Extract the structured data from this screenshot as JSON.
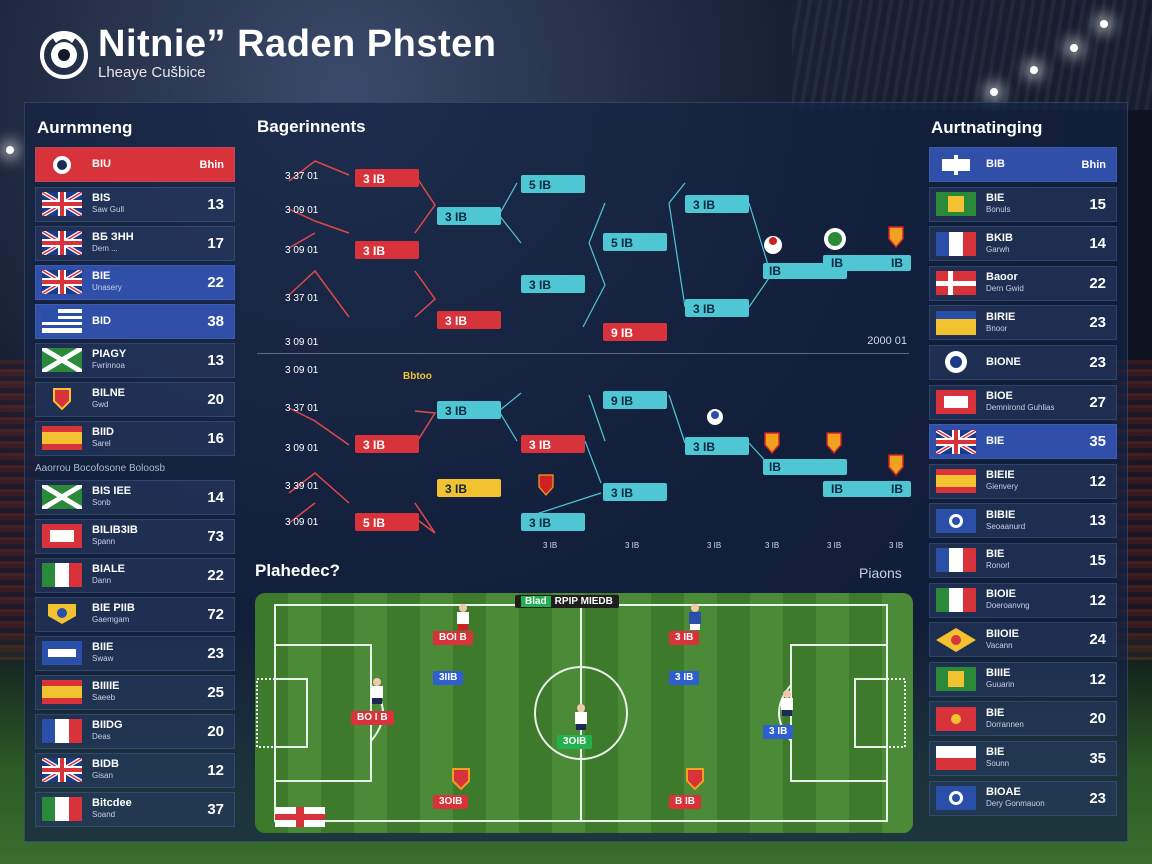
{
  "header": {
    "title": "Nitnie” Raden Phsten",
    "subtitle": "Lheaye Cušbice"
  },
  "left_panel": {
    "heading": "Aurnmneng",
    "header_row": {
      "name": "BIU",
      "score": "Bhin"
    },
    "rows": [
      {
        "name": "BIS",
        "sub": "Saw Gull",
        "score": "13"
      },
      {
        "name": "BБ ЗНН",
        "sub": "Dem ...",
        "score": "17"
      },
      {
        "name": "BIE",
        "sub": "Unasery",
        "score": "22"
      },
      {
        "name": "BID",
        "sub": "",
        "score": "38"
      },
      {
        "name": "PIAGY",
        "sub": "Fwrinnoa",
        "score": "13"
      },
      {
        "name": "BILNE",
        "sub": "Gwd",
        "score": "20"
      },
      {
        "name": "BIID",
        "sub": "Sarel",
        "score": "16"
      }
    ],
    "divider": "Aaorrou Bocofosone Boloosb",
    "rows2": [
      {
        "name": "BIS IEE",
        "sub": "Sonb",
        "score": "14"
      },
      {
        "name": "BILIB3IB",
        "sub": "Spann",
        "score": "73"
      },
      {
        "name": "BIALE",
        "sub": "Dann",
        "score": "22"
      },
      {
        "name": "BIE PIIB",
        "sub": "Gaemgam",
        "score": "72"
      },
      {
        "name": "BIIE",
        "sub": "Swaw",
        "score": "23"
      },
      {
        "name": "BIIIIE",
        "sub": "Saeeb",
        "score": "25"
      },
      {
        "name": "BIIDG",
        "sub": "Deas",
        "score": "20"
      },
      {
        "name": "BIDB",
        "sub": "Gisan",
        "score": "12"
      },
      {
        "name": "Bitcdee",
        "sub": "Soand",
        "score": "37"
      }
    ]
  },
  "right_panel": {
    "heading": "Aurtnatinging",
    "header_row": {
      "name": "BIB",
      "score": "Bhin"
    },
    "rows": [
      {
        "name": "BIE",
        "sub": "Bonuls",
        "score": "15"
      },
      {
        "name": "BKIB",
        "sub": "Garwh",
        "score": "14"
      },
      {
        "name": "Baoor",
        "sub": "Dern Gwid",
        "score": "22"
      },
      {
        "name": "BIRIE",
        "sub": "Bnoor",
        "score": "23"
      },
      {
        "name": "BIONE",
        "sub": "",
        "score": "23"
      },
      {
        "name": "BIOE",
        "sub": "Demnirond Guhlias",
        "score": "27"
      },
      {
        "name": "BIE",
        "sub": "",
        "score": "35"
      },
      {
        "name": "BIEIE",
        "sub": "Gienvery",
        "score": "12"
      },
      {
        "name": "BIBIE",
        "sub": "Seoaanurd",
        "score": "13"
      },
      {
        "name": "BIE",
        "sub": "Ronorl",
        "score": "15"
      },
      {
        "name": "BIOIE",
        "sub": "Doeroanvng",
        "score": "12"
      },
      {
        "name": "BIIOIE",
        "sub": "Vacann",
        "score": "24"
      },
      {
        "name": "BIIIE",
        "sub": "Guuarin",
        "score": "12"
      },
      {
        "name": "BIE",
        "sub": "Dorrannen",
        "score": "20"
      },
      {
        "name": "BIE",
        "sub": "Sounn",
        "score": "35"
      },
      {
        "name": "BIOAE",
        "sub": "Dery Gonmauon",
        "score": "23"
      }
    ]
  },
  "bracket": {
    "title": "Bagerinnents",
    "footer": "2000 01",
    "top_side_labels": [
      "3 37 01",
      "3 09 01",
      "3 09 01",
      "3 37 01",
      "3 09 01"
    ],
    "bottom_side_labels": [
      "3 09 01",
      "3 37 01",
      "3 09 01",
      "3 39 01",
      "3 09 01"
    ],
    "top_boxes": [
      "3 IB",
      "3 IB",
      "3 IB",
      "5 IB",
      "3 IB",
      "3 IB",
      "5 IB",
      "9 IB",
      "3 IB"
    ],
    "bottom_boxes": [
      "3 IB",
      "3 IB",
      "3 IB",
      "5 IB",
      "3 IB",
      "9 IB",
      "3 IB"
    ],
    "round_labels": [
      "3 IB",
      "3 IB",
      "3 IB",
      "3 IB",
      "3 IB",
      "3 IB"
    ],
    "final_top": [
      "IB",
      "IB",
      "IB"
    ],
    "final_bottom": [
      "IB",
      "IB",
      "IB"
    ],
    "bottom_tag": "Bbtoo",
    "axis_labels": [
      "3 IB",
      "3 IB",
      "3 IB",
      "3 IB",
      "3 IB",
      "3 IB"
    ]
  },
  "pitch": {
    "title": "Plahedec?",
    "tag": "Piaons",
    "top_label_green": "Blad",
    "top_label": "RPIP MIEDB",
    "tags": [
      "BOI B",
      "3IIB",
      "3 IB",
      "3 IB",
      "BO I B",
      "3OIB",
      "3 IB",
      "3OIB",
      "B IB",
      "3 IB"
    ]
  },
  "colors": {
    "red": "#d8333a",
    "blue": "#2f4fa8",
    "cyan": "#4fc6d4",
    "yellow": "#f2c230",
    "panel": "#14223f"
  }
}
